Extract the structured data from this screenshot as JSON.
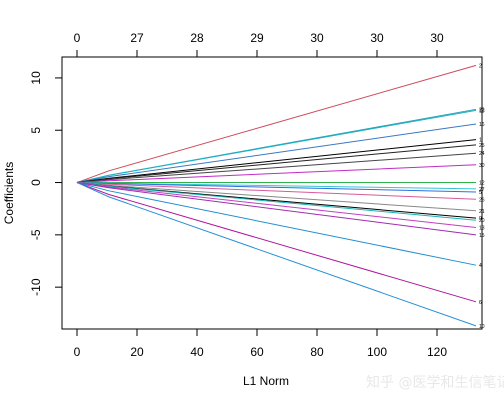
{
  "chart_data": {
    "type": "line",
    "title": "",
    "xlabel": "L1 Norm",
    "ylabel": "Coefficients",
    "xlim": [
      -5,
      135
    ],
    "ylim": [
      -14,
      12
    ],
    "x_ticks": [
      0,
      20,
      40,
      60,
      80,
      100,
      120
    ],
    "y_ticks": [
      -10,
      -5,
      0,
      5,
      10
    ],
    "top_axis": {
      "ticks": [
        0,
        20,
        40,
        60,
        80,
        100,
        120
      ],
      "labels": [
        "0",
        "27",
        "28",
        "29",
        "30",
        "30",
        "30"
      ]
    },
    "grid": false,
    "series": [
      {
        "name": "2",
        "color": "#cd4a5a",
        "end_x": 133,
        "end_y": 11.2
      },
      {
        "name": "22",
        "color": "#2a9fb5",
        "end_x": 133,
        "end_y": 7.0
      },
      {
        "name": "18",
        "color": "#1ab3c4",
        "end_x": 133,
        "end_y": 6.9
      },
      {
        "name": "16",
        "color": "#3a78c2",
        "end_x": 133,
        "end_y": 5.6
      },
      {
        "name": "1",
        "color": "#000000",
        "end_x": 133,
        "end_y": 4.1
      },
      {
        "name": "25",
        "color": "#222222",
        "end_x": 133,
        "end_y": 3.6
      },
      {
        "name": "24",
        "color": "#444444",
        "end_x": 133,
        "end_y": 2.8
      },
      {
        "name": "30",
        "color": "#c02ac9",
        "end_x": 133,
        "end_y": 1.7
      },
      {
        "name": "12",
        "color": "#2db34a",
        "end_x": 133,
        "end_y": 0.0
      },
      {
        "name": "27",
        "color": "#36c2d8",
        "end_x": 133,
        "end_y": -0.6
      },
      {
        "name": "5",
        "color": "#2e6fe0",
        "end_x": 133,
        "end_y": -0.9
      },
      {
        "name": "26",
        "color": "#d65a9c",
        "end_x": 133,
        "end_y": -1.6
      },
      {
        "name": "21",
        "color": "#888888",
        "end_x": 133,
        "end_y": -2.7
      },
      {
        "name": "9",
        "color": "#000000",
        "end_x": 133,
        "end_y": -3.4
      },
      {
        "name": "20",
        "color": "#1db4b4",
        "end_x": 133,
        "end_y": -3.6
      },
      {
        "name": "13",
        "color": "#c040c0",
        "end_x": 133,
        "end_y": -4.3
      },
      {
        "name": "15",
        "color": "#a02cb0",
        "end_x": 133,
        "end_y": -5.0
      },
      {
        "name": "4",
        "color": "#1f8fd0",
        "end_x": 133,
        "end_y": -7.9
      },
      {
        "name": "6",
        "color": "#b0169c",
        "end_x": 133,
        "end_y": -11.4
      },
      {
        "name": "10",
        "color": "#2a90d8",
        "end_x": 133,
        "end_y": -13.7
      }
    ]
  },
  "watermark": "知乎 @医学和生信笔记"
}
